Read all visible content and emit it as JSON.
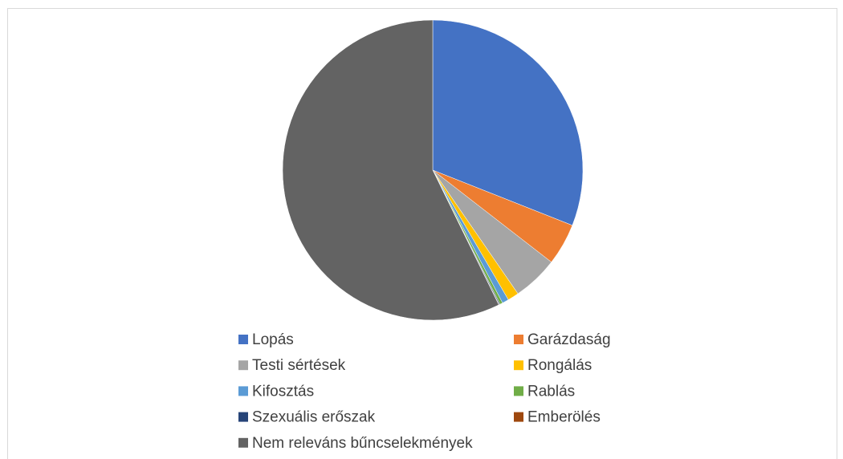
{
  "chart_data": {
    "type": "pie",
    "categories": [
      "Lopás",
      "Garázdaság",
      "Testi sértések",
      "Rongálás",
      "Kifosztás",
      "Rablás",
      "Szexuális erőszak",
      "Emberölés",
      "Nem releváns bűncselekmények"
    ],
    "values": [
      31,
      4.5,
      4.9,
      1.2,
      0.7,
      0.3,
      0.1,
      0.05,
      57.25
    ],
    "colors": [
      "#4472c4",
      "#ed7d31",
      "#a5a5a5",
      "#ffc000",
      "#5b9bd5",
      "#70ad47",
      "#264478",
      "#9e480e",
      "#636363"
    ],
    "legend": "bottom"
  }
}
